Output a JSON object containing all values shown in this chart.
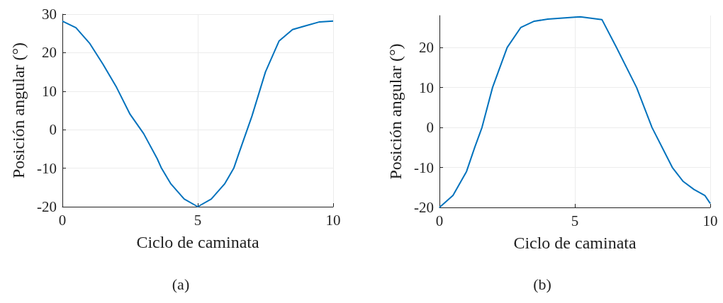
{
  "chart_data": [
    {
      "type": "line",
      "xlabel": "Ciclo de caminata",
      "ylabel": "Posición angular (°)",
      "annotations": [
        "(a)"
      ],
      "x": [
        0,
        0.5,
        1,
        1.5,
        2,
        2.5,
        3,
        3.5,
        3.66,
        4,
        4.5,
        5,
        5.5,
        6,
        6.33,
        6.5,
        7,
        7.5,
        8,
        8.5,
        9,
        9.5,
        10
      ],
      "series": [
        {
          "color": "#0072bd",
          "values": [
            28.2,
            26.5,
            22.5,
            17,
            11,
            4,
            -1,
            -7.5,
            -10,
            -14,
            -18,
            -20,
            -18,
            -14,
            -10,
            -6.5,
            3.5,
            15,
            23,
            26,
            27,
            28,
            28.2
          ]
        }
      ],
      "xlim": [
        0,
        10
      ],
      "xticks": [
        0,
        5,
        10
      ],
      "ylim": [
        -20,
        30
      ],
      "yticks": [
        -20,
        -10,
        0,
        10,
        20,
        30
      ],
      "grid": true,
      "marker": "none",
      "line_style": "solid"
    },
    {
      "type": "line",
      "xlabel": "Ciclo de caminata",
      "ylabel": "Posición angular (°)",
      "annotations": [
        "(b)"
      ],
      "x": [
        0,
        0.5,
        1,
        1.3,
        1.57,
        1.96,
        2.5,
        3,
        3.5,
        4,
        5,
        5.2,
        6,
        6.54,
        7.28,
        7.85,
        8.6,
        9,
        9.4,
        9.8,
        10
      ],
      "series": [
        {
          "color": "#0072bd",
          "values": [
            -20,
            -17,
            -11,
            -5,
            0,
            10,
            20,
            25,
            26.6,
            27.1,
            27.6,
            27.7,
            27,
            20,
            10,
            0,
            -10,
            -13.5,
            -15.5,
            -17,
            -19
          ]
        }
      ],
      "xlim": [
        0,
        10
      ],
      "xticks": [
        0,
        5,
        10
      ],
      "ylim": [
        -20,
        28
      ],
      "yticks": [
        -20,
        -10,
        0,
        10,
        20
      ],
      "grid": true,
      "marker": "none",
      "line_style": "solid"
    }
  ]
}
